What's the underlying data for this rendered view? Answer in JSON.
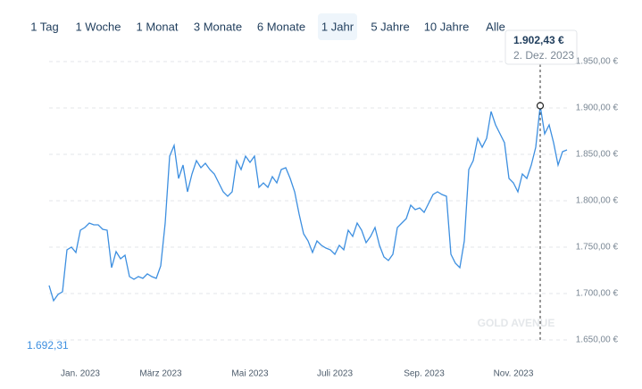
{
  "tabs": [
    "1 Tag",
    "1 Woche",
    "1 Monat",
    "3 Monate",
    "6 Monate",
    "1 Jahr",
    "5 Jahre",
    "10 Jahre",
    "Alle"
  ],
  "selected_tab": "1 Jahr",
  "chart_data": {
    "type": "line",
    "categories": [
      null,
      null,
      null,
      null,
      null,
      null,
      null,
      "Jan. 2023",
      null,
      null,
      null,
      null,
      null,
      null,
      null,
      null,
      null,
      null,
      null,
      null,
      null,
      null,
      null,
      null,
      null,
      "März 2023",
      null,
      null,
      null,
      null,
      null,
      null,
      null,
      null,
      null,
      null,
      null,
      null,
      null,
      null,
      null,
      null,
      null,
      null,
      null,
      "Mai 2023",
      null,
      null,
      null,
      null,
      null,
      null,
      null,
      null,
      null,
      null,
      null,
      null,
      null,
      null,
      null,
      null,
      null,
      null,
      "Juli 2023",
      null,
      null,
      null,
      null,
      null,
      null,
      null,
      null,
      null,
      null,
      null,
      null,
      null,
      null,
      null,
      null,
      null,
      null,
      null,
      "Sep. 2023",
      null,
      null,
      null,
      null,
      null,
      null,
      null,
      null,
      null,
      null,
      null,
      null,
      null,
      null,
      null,
      null,
      null,
      null,
      null,
      "Nov. 2023",
      null,
      null,
      null,
      null,
      null,
      null,
      null,
      null,
      null,
      null,
      null,
      null
    ],
    "series": [
      {
        "color": "#3d8fe0",
        "values": [
          1708.7,
          1692.31,
          1699.0,
          1701.9,
          1747.1,
          1750.0,
          1744.2,
          1768.3,
          1771.2,
          1776.0,
          1774.0,
          1774.0,
          1769.2,
          1768.3,
          1727.9,
          1745.2,
          1737.5,
          1741.3,
          1718.3,
          1715.4,
          1718.3,
          1716.3,
          1721.2,
          1718.3,
          1716.3,
          1729.8,
          1776.0,
          1848.1,
          1859.6,
          1824.0,
          1838.5,
          1809.6,
          1828.8,
          1843.3,
          1835.6,
          1840.4,
          1833.7,
          1828.8,
          1819.2,
          1809.6,
          1804.8,
          1809.6,
          1843.3,
          1833.7,
          1848.1,
          1841.3,
          1848.1,
          1814.4,
          1819.2,
          1814.4,
          1826.0,
          1819.2,
          1833.7,
          1835.6,
          1824.0,
          1809.6,
          1785.6,
          1764.4,
          1756.7,
          1744.2,
          1756.7,
          1751.9,
          1749.0,
          1747.1,
          1742.3,
          1751.9,
          1747.1,
          1768.3,
          1761.5,
          1776.0,
          1768.3,
          1754.8,
          1761.5,
          1771.2,
          1751.9,
          1739.4,
          1735.6,
          1742.3,
          1771.2,
          1776.0,
          1780.8,
          1795.2,
          1790.4,
          1792.3,
          1787.5,
          1797.1,
          1806.7,
          1809.6,
          1806.7,
          1804.8,
          1742.3,
          1732.7,
          1727.9,
          1756.7,
          1833.7,
          1843.3,
          1867.3,
          1857.7,
          1867.3,
          1896.2,
          1881.7,
          1872.1,
          1862.5,
          1824.0,
          1819.2,
          1809.6,
          1828.8,
          1824.0,
          1838.5,
          1857.7,
          1902.43,
          1872.1,
          1881.7,
          1862.5,
          1838.5,
          1852.9,
          1854.8
        ]
      }
    ],
    "ylim": [
      1640,
      1980
    ],
    "yticks": [
      {
        "value": 1650,
        "label": "1.650,00 €"
      },
      {
        "value": 1700,
        "label": "1.700,00 €"
      },
      {
        "value": 1750,
        "label": "1.750,00 €"
      },
      {
        "value": 1800,
        "label": "1.800,00 €"
      },
      {
        "value": 1850,
        "label": "1.850,00 €"
      },
      {
        "value": 1900,
        "label": "1.900,00 €"
      },
      {
        "value": 1950,
        "label": "1.950,00 €"
      }
    ],
    "grid": true,
    "min_label": {
      "value": 1692.31,
      "label": "1.692,31"
    },
    "tooltip": {
      "value": 1902.43,
      "label": "1.902,43 €",
      "date": "2. Dez. 2023"
    },
    "watermark": "GOLD AVENUE"
  }
}
